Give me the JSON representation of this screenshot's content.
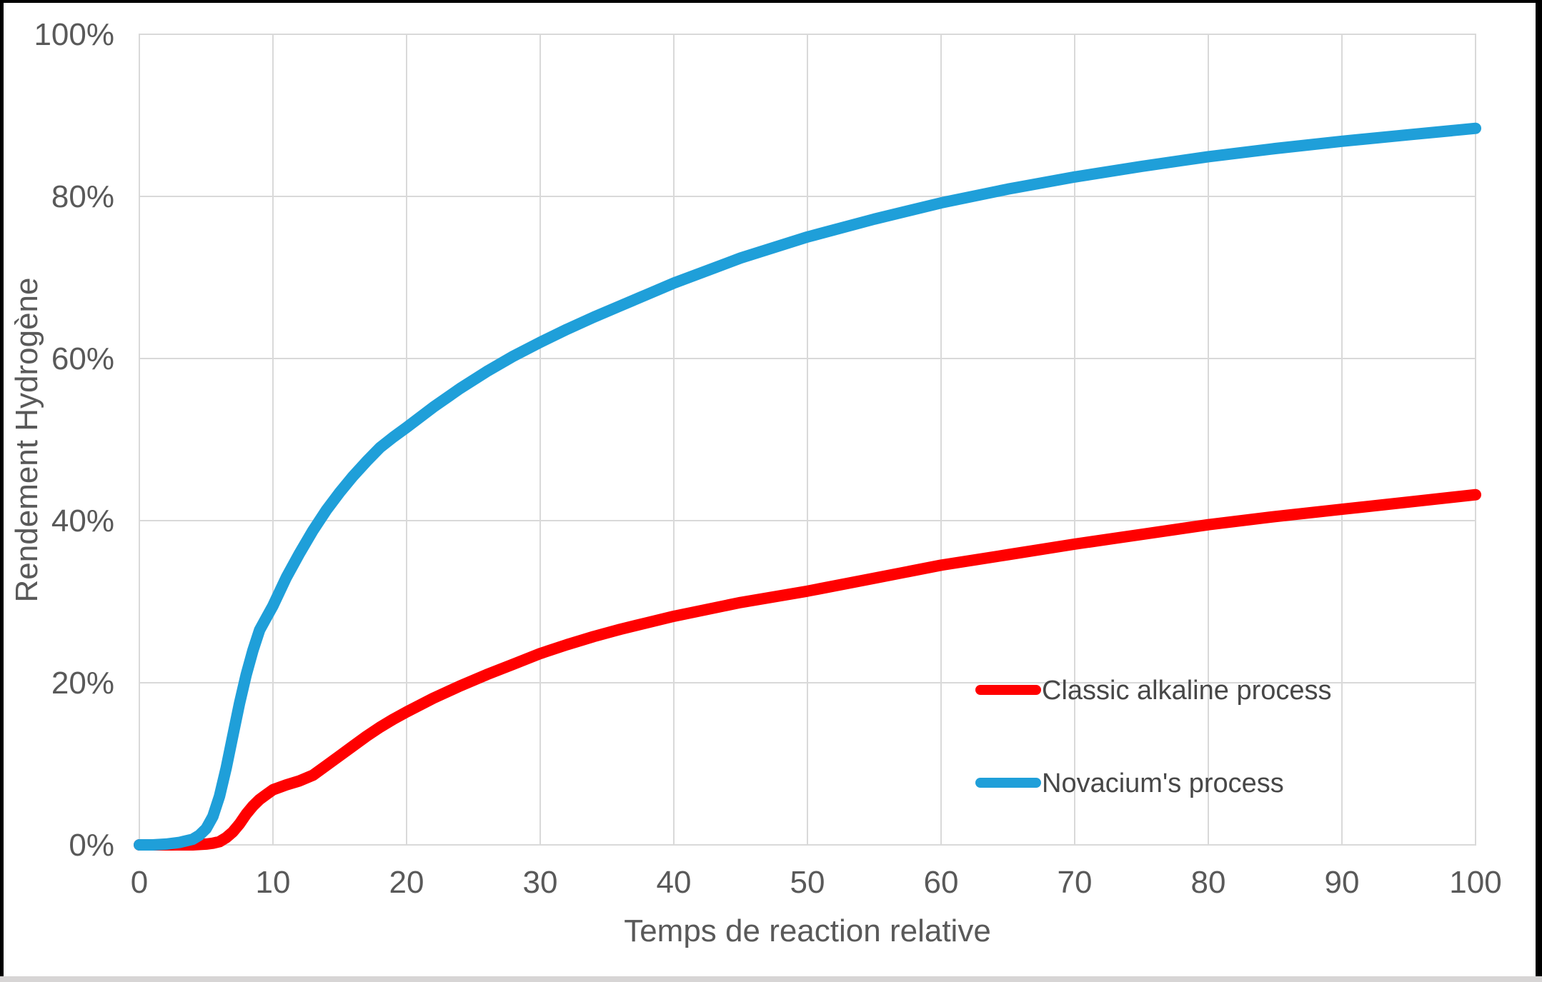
{
  "figure": {
    "background": "#FFFFFF",
    "frame_color": "#000000",
    "bottom_strip_color": "#D7D5D5",
    "gridline_color": "#D9D9D9",
    "tick_text_color": "#595959"
  },
  "chart_data": {
    "type": "line",
    "title": "",
    "xlabel": "Temps de reaction relative",
    "ylabel": "Rendement Hydrogène",
    "xlim": [
      0,
      100
    ],
    "ylim": [
      0,
      100
    ],
    "grid": true,
    "legend_position": "inside-right",
    "x_ticks": [
      "0",
      "10",
      "20",
      "30",
      "40",
      "50",
      "60",
      "70",
      "80",
      "90",
      "100"
    ],
    "x_tick_values": [
      0,
      10,
      20,
      30,
      40,
      50,
      60,
      70,
      80,
      90,
      100
    ],
    "y_ticks": [
      "0%",
      "20%",
      "40%",
      "60%",
      "80%",
      "100%"
    ],
    "y_tick_values": [
      0,
      20,
      40,
      60,
      80,
      100
    ],
    "series": [
      {
        "name": "Classic alkaline process",
        "color": "#FF0000",
        "points": [
          [
            0,
            0
          ],
          [
            1,
            0
          ],
          [
            2,
            0
          ],
          [
            3,
            0
          ],
          [
            4,
            0
          ],
          [
            5,
            0.1
          ],
          [
            5.5,
            0.2
          ],
          [
            6,
            0.4
          ],
          [
            6.5,
            0.9
          ],
          [
            7,
            1.6
          ],
          [
            7.5,
            2.6
          ],
          [
            8,
            3.8
          ],
          [
            8.5,
            4.8
          ],
          [
            9,
            5.6
          ],
          [
            9.5,
            6.2
          ],
          [
            10,
            6.8
          ],
          [
            11,
            7.4
          ],
          [
            12,
            7.9
          ],
          [
            13,
            8.6
          ],
          [
            14,
            9.8
          ],
          [
            15,
            11
          ],
          [
            16,
            12.2
          ],
          [
            17,
            13.4
          ],
          [
            18,
            14.5
          ],
          [
            19,
            15.5
          ],
          [
            20,
            16.4
          ],
          [
            22,
            18.1
          ],
          [
            24,
            19.6
          ],
          [
            26,
            21
          ],
          [
            28,
            22.3
          ],
          [
            30,
            23.6
          ],
          [
            32,
            24.7
          ],
          [
            34,
            25.7
          ],
          [
            36,
            26.6
          ],
          [
            38,
            27.4
          ],
          [
            40,
            28.2
          ],
          [
            45,
            29.9
          ],
          [
            50,
            31.3
          ],
          [
            55,
            32.9
          ],
          [
            60,
            34.5
          ],
          [
            65,
            35.8
          ],
          [
            70,
            37.1
          ],
          [
            75,
            38.3
          ],
          [
            80,
            39.5
          ],
          [
            85,
            40.5
          ],
          [
            90,
            41.4
          ],
          [
            95,
            42.3
          ],
          [
            100,
            43.2
          ]
        ]
      },
      {
        "name": "Novacium's process",
        "color": "#1F9FD9",
        "points": [
          [
            0,
            0
          ],
          [
            1,
            0
          ],
          [
            2,
            0.1
          ],
          [
            3,
            0.3
          ],
          [
            4,
            0.7
          ],
          [
            4.5,
            1.2
          ],
          [
            5,
            2
          ],
          [
            5.5,
            3.5
          ],
          [
            6,
            6
          ],
          [
            6.5,
            9.5
          ],
          [
            7,
            13.5
          ],
          [
            7.5,
            17.5
          ],
          [
            8,
            21
          ],
          [
            8.5,
            24
          ],
          [
            9,
            26.5
          ],
          [
            9.5,
            28
          ],
          [
            10,
            29.5
          ],
          [
            11,
            33
          ],
          [
            12,
            36
          ],
          [
            13,
            38.8
          ],
          [
            14,
            41.3
          ],
          [
            15,
            43.5
          ],
          [
            16,
            45.5
          ],
          [
            17,
            47.3
          ],
          [
            18,
            49
          ],
          [
            19,
            50.3
          ],
          [
            20,
            51.5
          ],
          [
            22,
            54
          ],
          [
            24,
            56.3
          ],
          [
            26,
            58.4
          ],
          [
            28,
            60.3
          ],
          [
            30,
            62
          ],
          [
            32,
            63.6
          ],
          [
            34,
            65.1
          ],
          [
            36,
            66.5
          ],
          [
            38,
            67.9
          ],
          [
            40,
            69.3
          ],
          [
            45,
            72.4
          ],
          [
            50,
            75
          ],
          [
            55,
            77.2
          ],
          [
            60,
            79.2
          ],
          [
            65,
            80.9
          ],
          [
            70,
            82.4
          ],
          [
            75,
            83.7
          ],
          [
            80,
            84.9
          ],
          [
            85,
            85.9
          ],
          [
            90,
            86.8
          ],
          [
            95,
            87.6
          ],
          [
            100,
            88.4
          ]
        ]
      }
    ]
  },
  "legend": {
    "items": [
      {
        "label": "Classic alkaline process",
        "color": "#FF0000"
      },
      {
        "label": "Novacium's process",
        "color": "#1F9FD9"
      }
    ]
  }
}
